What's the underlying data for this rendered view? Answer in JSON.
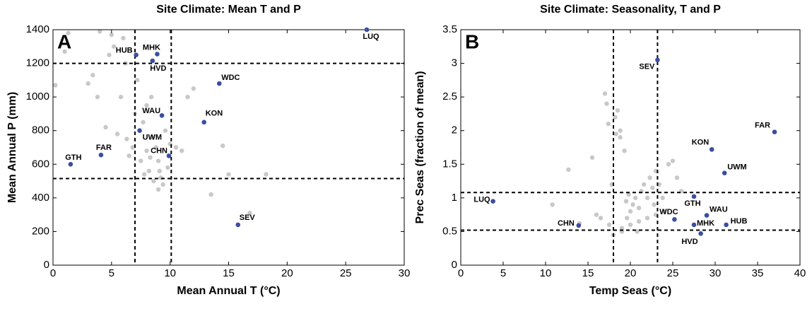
{
  "chart_data": [
    {
      "type": "scatter",
      "title": "Site Climate: Mean T and P",
      "panel_label": "A",
      "x_label": "Mean Annual T (°C)",
      "y_label": "Mean Annual P (mm)",
      "xlim": [
        0,
        30
      ],
      "xticks": [
        0,
        5,
        10,
        15,
        20,
        25,
        30
      ],
      "ylim": [
        0,
        1400
      ],
      "yticks": [
        0,
        200,
        400,
        600,
        800,
        1000,
        1200,
        1400
      ],
      "reference_lines": {
        "x": [
          7,
          10.1
        ],
        "y": [
          1200,
          515
        ]
      },
      "background": {
        "color": "#c8c8c8",
        "x": [
          0.2,
          1,
          1.3,
          3,
          3.4,
          3.8,
          4,
          4.5,
          5,
          5.5,
          5.8,
          6,
          6.3,
          6.5,
          6.8,
          7,
          7.2,
          7.5,
          7.7,
          8,
          8.2,
          8.4,
          8.6,
          8.8,
          9,
          9.2,
          9.4,
          9.6,
          9.8,
          10,
          8,
          8.5,
          9,
          7.8,
          8.3,
          9.1,
          10.5,
          11,
          11.5,
          12,
          13.5,
          14.5,
          15,
          16.8,
          18.2,
          5.2,
          6.2,
          4.8
        ],
        "y": [
          1070,
          1270,
          1380,
          1080,
          1130,
          1000,
          1390,
          820,
          1370,
          780,
          1000,
          1350,
          750,
          650,
          700,
          900,
          1100,
          620,
          850,
          950,
          560,
          1000,
          500,
          700,
          620,
          520,
          480,
          800,
          580,
          720,
          680,
          760,
          450,
          540,
          640,
          560,
          700,
          680,
          1000,
          1050,
          420,
          710,
          540,
          310,
          540,
          1300,
          1200,
          1250
        ]
      },
      "sites": {
        "color": "#3a4ea0",
        "labels": [
          "LUQ",
          "HUB",
          "MHK",
          "HVD",
          "WDC",
          "WAU",
          "KON",
          "UWM",
          "CHN",
          "FAR",
          "GTH",
          "SEV"
        ],
        "x": [
          26.8,
          7.1,
          8.9,
          8.5,
          14.2,
          9.3,
          12.9,
          7.4,
          9.9,
          4.1,
          1.5,
          15.8
        ],
        "y": [
          1400,
          1250,
          1255,
          1215,
          1080,
          890,
          850,
          800,
          650,
          655,
          600,
          240
        ]
      }
    },
    {
      "type": "scatter",
      "title": "Site Climate: Seasonality, T and P",
      "panel_label": "B",
      "x_label": "Temp Seas (°C)",
      "y_label": "Prec Seas (fraction of mean)",
      "xlim": [
        0,
        40
      ],
      "xticks": [
        0,
        5,
        10,
        15,
        20,
        25,
        30,
        35,
        40
      ],
      "ylim": [
        0,
        3.5
      ],
      "yticks": [
        0,
        0.5,
        1,
        1.5,
        2,
        2.5,
        3,
        3.5
      ],
      "reference_lines": {
        "x": [
          18,
          23.2
        ],
        "y": [
          1.08,
          0.52
        ]
      },
      "background": {
        "color": "#c8c8c8",
        "x": [
          10.8,
          12.7,
          14,
          15.5,
          16.5,
          17,
          17.4,
          17.8,
          18.2,
          18.5,
          18.8,
          19,
          19.3,
          19.6,
          20,
          20.3,
          20.6,
          21,
          21.3,
          21.6,
          22,
          22.3,
          22.6,
          23,
          23.4,
          23.8,
          24.5,
          25,
          25.5,
          26,
          18,
          19,
          20,
          21,
          22,
          23,
          17.5,
          18.3,
          18.8,
          19.5,
          16,
          17.2,
          20.8,
          22.8,
          24,
          19.8
        ],
        "y": [
          0.9,
          1.42,
          0.62,
          1.6,
          0.7,
          2.55,
          2.1,
          1.2,
          2.2,
          2.3,
          1.9,
          0.5,
          1.7,
          0.7,
          0.8,
          0.9,
          1.0,
          0.85,
          1.1,
          1.2,
          1.0,
          1.3,
          1.15,
          1.4,
          1.2,
          1.0,
          1.5,
          1.55,
          1.3,
          1.1,
          0.45,
          0.55,
          0.6,
          0.65,
          0.7,
          0.75,
          0.6,
          1.95,
          2.0,
          0.95,
          0.75,
          2.4,
          0.5,
          0.9,
          0.8,
          1.05
        ]
      },
      "sites": {
        "color": "#3a4ea0",
        "labels": [
          "SEV",
          "FAR",
          "KON",
          "UWM",
          "GTH",
          "LUQ",
          "WAU",
          "WDC",
          "MHK",
          "HUB",
          "CHN",
          "HVD"
        ],
        "x": [
          23.2,
          37,
          29.6,
          31.1,
          27.5,
          3.8,
          29,
          25.2,
          27.5,
          31.3,
          13.9,
          28.3
        ],
        "y": [
          3.05,
          1.98,
          1.72,
          1.37,
          1.02,
          0.95,
          0.74,
          0.68,
          0.6,
          0.6,
          0.59,
          0.47
        ]
      }
    }
  ]
}
